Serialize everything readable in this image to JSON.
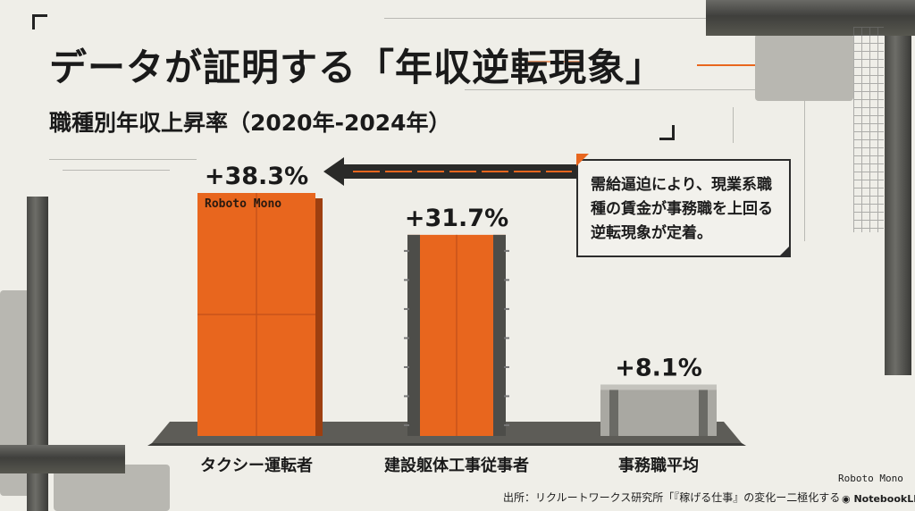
{
  "title": "データが証明する「年収逆転現象」",
  "subtitle": "職種別年収上昇率（2020年-2024年）",
  "callout": {
    "lines": [
      "需給逼迫により、現業系職",
      "種の賃金が事務職を上回る",
      "逆転現象が定着。"
    ]
  },
  "bar_font_tag": "Roboto Mono",
  "corner_font_tag": "Roboto Mono",
  "source": "出所：リクルートワークス研究所「『稼げる仕事』の変化ー二極化するブルーカラー",
  "brand": "NotebookLM",
  "colors": {
    "accent": "#e8661e",
    "concrete": "#a9a8a2",
    "steel": "#4d4d49"
  },
  "chart_data": {
    "type": "bar",
    "title": "職種別年収上昇率（2020年-2024年）",
    "categories": [
      "タクシー運転者",
      "建設躯体工事従事者",
      "事務職平均"
    ],
    "values": [
      38.3,
      31.7,
      8.1
    ],
    "value_labels": [
      "+38.3%",
      "+31.7%",
      "+8.1%"
    ],
    "ylim": [
      0,
      38.3
    ],
    "grid": false,
    "xlabel": "",
    "ylabel": ""
  }
}
